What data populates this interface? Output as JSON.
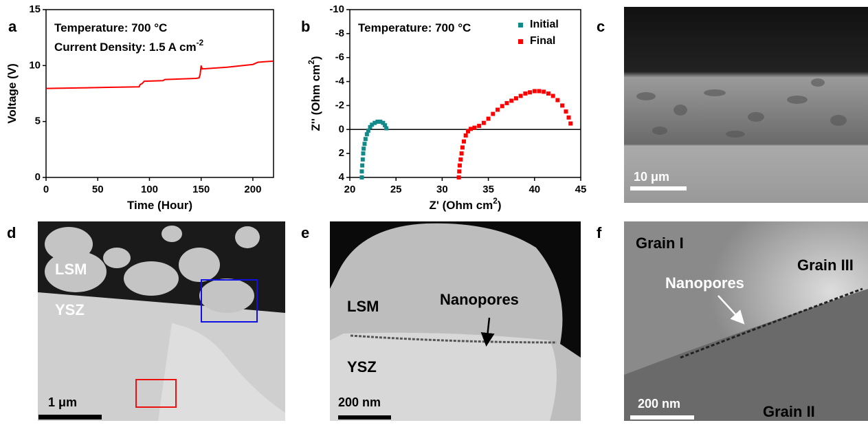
{
  "chart_data": [
    {
      "type": "line",
      "panel_label": "a",
      "annotations": [
        {
          "text": "Temperature: 700 °C"
        },
        {
          "text": "Current Density: 1.5 A cm",
          "sup": "-2"
        }
      ],
      "xlabel": {
        "text": "Time (Hour)"
      },
      "ylabel": {
        "text": "Voltage (V)"
      },
      "x": [
        0,
        30,
        60,
        90,
        91,
        93,
        95,
        113,
        115,
        145,
        148,
        149,
        150,
        151,
        175,
        200,
        205,
        220
      ],
      "values": [
        7.95,
        8.0,
        8.05,
        8.1,
        8.3,
        8.4,
        8.6,
        8.65,
        8.75,
        8.85,
        8.9,
        9.2,
        10.0,
        9.7,
        9.85,
        10.1,
        10.3,
        10.4
      ],
      "color": "#ff0000",
      "xlim": [
        0,
        220
      ],
      "xticks": [
        0,
        50,
        100,
        150,
        200
      ],
      "ylim": [
        0,
        15
      ],
      "yticks": [
        0,
        5,
        10,
        15
      ]
    },
    {
      "type": "scatter",
      "panel_label": "b",
      "annotations": [
        {
          "text": "Temperature: 700 °C"
        }
      ],
      "xlabel": {
        "text": "Z' (Ohm cm",
        "sup": "2",
        "after": ")"
      },
      "ylabel": {
        "text": "Z'' (Ohm cm",
        "sup": "2",
        "after": ")"
      },
      "legend": "upper right",
      "hline": 0,
      "series": [
        {
          "name": "Initial",
          "color": "#138a8a",
          "x": [
            21.3,
            21.3,
            21.35,
            21.4,
            21.45,
            21.5,
            21.6,
            21.7,
            21.85,
            22.0,
            22.2,
            22.4,
            22.7,
            23.0,
            23.3,
            23.6,
            23.8,
            23.95
          ],
          "values": [
            4.0,
            3.5,
            3.0,
            2.5,
            2.0,
            1.6,
            1.2,
            0.8,
            0.4,
            0.1,
            -0.2,
            -0.4,
            -0.55,
            -0.65,
            -0.65,
            -0.55,
            -0.35,
            -0.1
          ]
        },
        {
          "name": "Final",
          "color": "#ff0000",
          "x": [
            31.8,
            31.85,
            31.9,
            32.0,
            32.1,
            32.2,
            32.35,
            32.55,
            32.8,
            33.1,
            33.5,
            34.0,
            34.5,
            35.0,
            35.5,
            36.0,
            36.5,
            37.0,
            37.5,
            38.0,
            38.5,
            39.0,
            39.5,
            40.0,
            40.5,
            41.0,
            41.5,
            42.0,
            42.5,
            43.0,
            43.4,
            43.7,
            43.9
          ],
          "values": [
            4.0,
            3.5,
            3.0,
            2.5,
            2.0,
            1.5,
            1.0,
            0.5,
            0.15,
            -0.05,
            -0.15,
            -0.3,
            -0.55,
            -0.9,
            -1.3,
            -1.65,
            -1.95,
            -2.2,
            -2.4,
            -2.6,
            -2.8,
            -3.0,
            -3.1,
            -3.2,
            -3.2,
            -3.15,
            -3.0,
            -2.8,
            -2.45,
            -2.0,
            -1.5,
            -1.0,
            -0.5
          ]
        }
      ],
      "xlim": [
        20,
        45
      ],
      "xticks": [
        20,
        25,
        30,
        35,
        40,
        45
      ],
      "ylim": [
        4,
        -10
      ],
      "yticks": [
        -10,
        -8,
        -6,
        -4,
        -2,
        0,
        2,
        4
      ]
    }
  ],
  "panels": [
    {
      "label": "c",
      "scale_bar": "10 μm"
    },
    {
      "label": "d",
      "labels": [
        "LSM",
        "YSZ"
      ],
      "scale_bar": "1 μm"
    },
    {
      "label": "e",
      "labels": [
        "LSM",
        "Nanopores",
        "YSZ"
      ],
      "scale_bar": "200 nm"
    },
    {
      "label": "f",
      "labels": [
        "Grain I",
        "Grain III",
        "Nanopores",
        "Grain II"
      ],
      "scale_bar": "200 nm"
    }
  ]
}
